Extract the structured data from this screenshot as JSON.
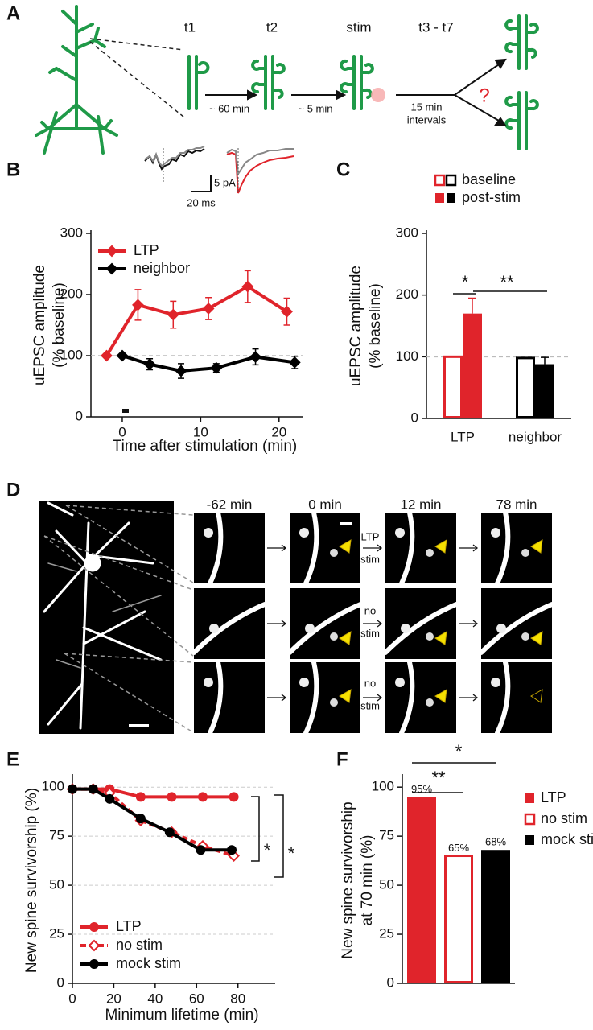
{
  "panels": {
    "A": "A",
    "B": "B",
    "C": "C",
    "D": "D",
    "E": "E",
    "F": "F"
  },
  "diagram": {
    "timepoints": [
      "t1",
      "t2",
      "stim",
      "t3 - t7"
    ],
    "interval_labels": [
      "~ 60 min",
      "~ 5 min",
      "15 min",
      "intervals"
    ],
    "question": "?"
  },
  "traces": {
    "y_scale": "5 pA",
    "x_scale": "20 ms"
  },
  "imaging": {
    "times": [
      "-62 min",
      "0 min",
      "12 min",
      "78 min"
    ],
    "conditions": [
      [
        "LTP",
        "stim"
      ],
      [
        "no",
        "stim"
      ],
      [
        "no",
        "stim"
      ]
    ]
  },
  "chart_data": [
    {
      "type": "line",
      "xlabel": "Time after stimulation (min)",
      "ylabel": [
        "uEPSC amplitude",
        "(% baseline)"
      ],
      "xlim": [
        -4,
        23
      ],
      "ylim": [
        0,
        300
      ],
      "xticks": [
        0,
        10,
        20
      ],
      "yticks": [
        0,
        100,
        200,
        300
      ],
      "reference_line": 100,
      "series": [
        {
          "name": "LTP",
          "color": "#e0242b",
          "marker": "diamond",
          "x": [
            -2,
            2,
            6.5,
            11,
            16,
            21
          ],
          "values": [
            100,
            183,
            167,
            177,
            213,
            172
          ],
          "errors": [
            null,
            25,
            22,
            18,
            26,
            22
          ]
        },
        {
          "name": "neighbor",
          "color": "#000000",
          "marker": "diamond",
          "x": [
            0,
            3.5,
            7.5,
            12,
            17,
            22
          ],
          "values": [
            100,
            86,
            75,
            80,
            98,
            89
          ],
          "errors": [
            null,
            9,
            12,
            7,
            13,
            10
          ]
        }
      ]
    },
    {
      "type": "bar",
      "ylabel": [
        "uEPSC amplitude",
        "(% baseline)"
      ],
      "categories": [
        "LTP",
        "neighbor"
      ],
      "ylim": [
        0,
        300
      ],
      "yticks": [
        0,
        100,
        200,
        300
      ],
      "reference_line": 100,
      "series": [
        {
          "name": "baseline",
          "colors": [
            "#e0242b",
            "#000000"
          ],
          "fill": false,
          "values": [
            100,
            98
          ]
        },
        {
          "name": "post-stim",
          "colors": [
            "#e0242b",
            "#000000"
          ],
          "fill": true,
          "values": [
            170,
            88
          ],
          "errors": [
            25,
            11
          ]
        }
      ],
      "annotations": [
        "*",
        "**"
      ]
    },
    {
      "type": "line",
      "xlabel": "Minimum lifetime (min)",
      "ylabel": [
        "New spine survivorship (%)"
      ],
      "xlim": [
        0,
        98
      ],
      "ylim": [
        0,
        105
      ],
      "xticks": [
        0,
        20,
        40,
        60,
        80
      ],
      "yticks": [
        0,
        25,
        50,
        75,
        100
      ],
      "grid": true,
      "series": [
        {
          "name": "LTP",
          "color": "#e0242b",
          "marker": "circle",
          "x": [
            0,
            10,
            18,
            33,
            48,
            63,
            78
          ],
          "values": [
            99,
            99,
            99,
            95,
            95,
            95,
            95
          ]
        },
        {
          "name": "no stim",
          "color": "#e0242b",
          "marker": "diamond-open",
          "dashed": true,
          "x": [
            0,
            10,
            18,
            33,
            48,
            63,
            78
          ],
          "values": [
            99,
            99,
            97,
            83,
            77,
            70,
            65
          ]
        },
        {
          "name": "mock stim",
          "color": "#000000",
          "marker": "circle",
          "x": [
            0,
            10,
            18,
            33,
            47,
            62,
            77
          ],
          "values": [
            99,
            99,
            94,
            84,
            77,
            68,
            68
          ]
        }
      ],
      "annotations": [
        "*",
        "*"
      ]
    },
    {
      "type": "bar",
      "ylabel": [
        "New spine survivorship",
        "at 70 min (%)"
      ],
      "categories": [
        null
      ],
      "ylim": [
        0,
        105
      ],
      "yticks": [
        0,
        25,
        50,
        75,
        100
      ],
      "series": [
        {
          "name": "LTP",
          "color": "#e0242b",
          "fill": true,
          "values": [
            95
          ],
          "value_labels": [
            "95%"
          ]
        },
        {
          "name": "no stim",
          "color": "#e0242b",
          "fill": false,
          "values": [
            65
          ],
          "value_labels": [
            "65%"
          ]
        },
        {
          "name": "mock stim",
          "color": "#000000",
          "fill": true,
          "values": [
            68
          ],
          "value_labels": [
            "68%"
          ]
        }
      ],
      "annotations": [
        "**",
        "*"
      ]
    }
  ]
}
